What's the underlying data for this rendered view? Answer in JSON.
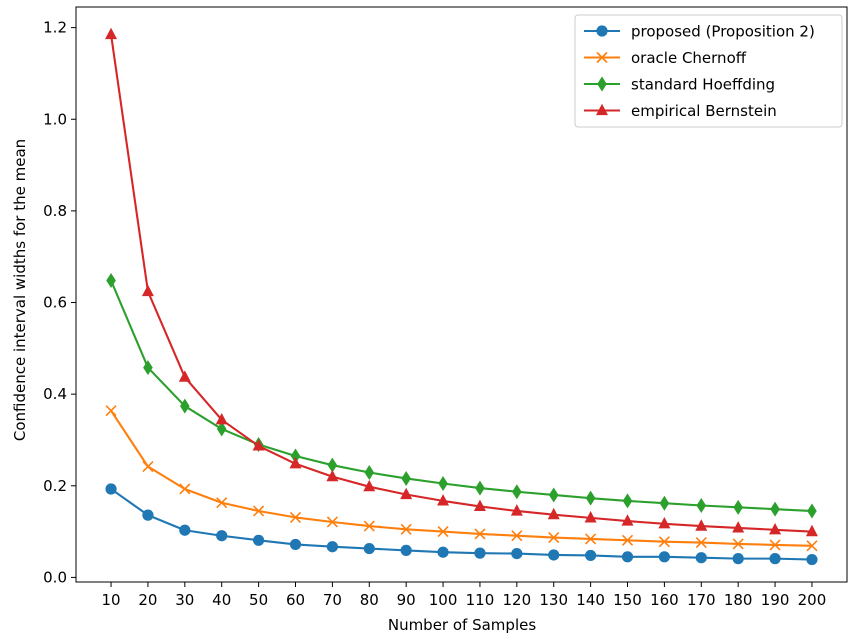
{
  "chart_data": {
    "type": "line",
    "xlabel": "Number of Samples",
    "ylabel": "Confidence interval widths for the mean",
    "x": [
      10,
      20,
      30,
      40,
      50,
      60,
      70,
      80,
      90,
      100,
      110,
      120,
      130,
      140,
      150,
      160,
      170,
      180,
      190,
      200
    ],
    "xticks": [
      10,
      20,
      30,
      40,
      50,
      60,
      70,
      80,
      90,
      100,
      110,
      120,
      130,
      140,
      150,
      160,
      170,
      180,
      190,
      200
    ],
    "xlim": [
      0.5,
      209.5
    ],
    "ylim": [
      -0.01,
      1.245
    ],
    "yticks": [
      0.0,
      0.2,
      0.4,
      0.6,
      0.8,
      1.0,
      1.2
    ],
    "ytick_labels": [
      "0.0",
      "0.2",
      "0.4",
      "0.6",
      "0.8",
      "1.0",
      "1.2"
    ],
    "grid": false,
    "legend_position": "top-right",
    "series": [
      {
        "name": "proposed (Proposition 2)",
        "color": "#1f77b4",
        "marker": "circle",
        "values": [
          0.193,
          0.136,
          0.103,
          0.091,
          0.081,
          0.072,
          0.067,
          0.063,
          0.059,
          0.055,
          0.053,
          0.052,
          0.049,
          0.048,
          0.045,
          0.045,
          0.043,
          0.041,
          0.041,
          0.039
        ]
      },
      {
        "name": "oracle Chernoff",
        "color": "#ff7f0e",
        "marker": "x",
        "values": [
          0.364,
          0.242,
          0.193,
          0.163,
          0.145,
          0.131,
          0.121,
          0.112,
          0.105,
          0.1,
          0.095,
          0.091,
          0.087,
          0.084,
          0.081,
          0.078,
          0.076,
          0.073,
          0.071,
          0.069
        ]
      },
      {
        "name": "standard Hoeffding",
        "color": "#2ca02c",
        "marker": "diamond",
        "values": [
          0.648,
          0.458,
          0.374,
          0.324,
          0.29,
          0.265,
          0.245,
          0.229,
          0.216,
          0.205,
          0.195,
          0.187,
          0.18,
          0.173,
          0.167,
          0.162,
          0.157,
          0.153,
          0.149,
          0.145
        ]
      },
      {
        "name": "empirical Bernstein",
        "color": "#d62728",
        "marker": "triangle",
        "values": [
          1.185,
          0.624,
          0.437,
          0.344,
          0.287,
          0.248,
          0.22,
          0.198,
          0.181,
          0.167,
          0.155,
          0.145,
          0.137,
          0.13,
          0.123,
          0.117,
          0.112,
          0.108,
          0.104,
          0.1
        ]
      }
    ]
  }
}
